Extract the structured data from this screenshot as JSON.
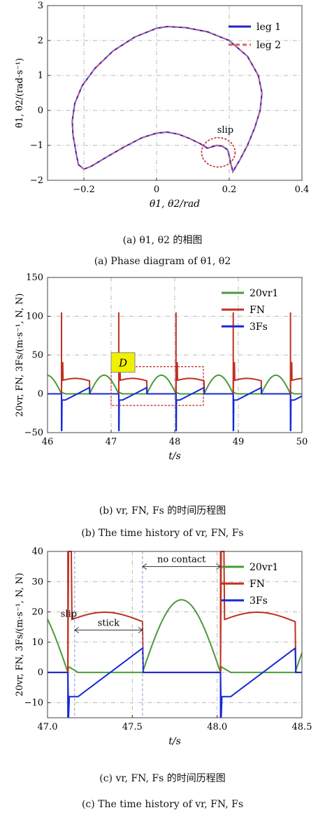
{
  "captions": {
    "a_cn": "(a) θ1, θ2 的相图",
    "a_en": "(a) Phase diagram of θ1, θ2",
    "b_cn": "(b) vr, FN, Fs 的时间历程图",
    "b_en": "(b) The time history of vr, FN, Fs",
    "c_cn": "(c) vr, FN, Fs 的时间历程图",
    "c_en": "(c) The time history of vr, FN, Fs"
  },
  "colors": {
    "leg1": "#2222cc",
    "leg2": "#e06060",
    "vr": "#4a9a3a",
    "FN": "#c03020",
    "Fs": "#1428d8",
    "grid": "#b8b8b8",
    "annot": "#c02020"
  },
  "chart_data": [
    {
      "id": "a",
      "type": "line",
      "title": "",
      "xlabel": "θ1, θ2/rad",
      "ylabel": "θ̇1, θ̇2/(rad·s⁻¹)",
      "xlim": [
        -0.3,
        0.4
      ],
      "ylim": [
        -2,
        3
      ],
      "xticks": [
        -0.2,
        0,
        0.2,
        0.4
      ],
      "xtick_labels": [
        "−0.2",
        "0",
        "0.2",
        "0.4"
      ],
      "yticks": [
        -2,
        -1,
        0,
        1,
        2,
        3
      ],
      "ytick_labels": [
        "−2",
        "−1",
        "0",
        "1",
        "2",
        "3"
      ],
      "grid": true,
      "legend": "top-right",
      "annotation": {
        "text": "slip",
        "x": 0.18,
        "y": -1.2
      },
      "series": [
        {
          "name": "leg 1",
          "style": "solid",
          "points": [
            [
              -0.2,
              -1.68
            ],
            [
              -0.215,
              -1.55
            ],
            [
              -0.22,
              -1.3
            ],
            [
              -0.225,
              -1.0
            ],
            [
              -0.23,
              -0.7
            ],
            [
              -0.232,
              -0.3
            ],
            [
              -0.225,
              0.2
            ],
            [
              -0.205,
              0.7
            ],
            [
              -0.17,
              1.2
            ],
            [
              -0.12,
              1.7
            ],
            [
              -0.06,
              2.1
            ],
            [
              0.0,
              2.35
            ],
            [
              0.03,
              2.4
            ],
            [
              0.08,
              2.37
            ],
            [
              0.14,
              2.25
            ],
            [
              0.2,
              2.0
            ],
            [
              0.25,
              1.55
            ],
            [
              0.28,
              1.0
            ],
            [
              0.29,
              0.5
            ],
            [
              0.285,
              0.0
            ],
            [
              0.27,
              -0.5
            ],
            [
              0.25,
              -1.0
            ],
            [
              0.23,
              -1.4
            ],
            [
              0.21,
              -1.75
            ],
            [
              0.205,
              -1.55
            ],
            [
              0.2,
              -1.3
            ],
            [
              0.195,
              -1.12
            ],
            [
              0.18,
              -1.02
            ],
            [
              0.165,
              -1.0
            ],
            [
              0.15,
              -1.05
            ],
            [
              0.14,
              -1.08
            ],
            [
              0.12,
              -0.95
            ],
            [
              0.09,
              -0.8
            ],
            [
              0.06,
              -0.68
            ],
            [
              0.03,
              -0.62
            ],
            [
              0.0,
              -0.65
            ],
            [
              -0.04,
              -0.78
            ],
            [
              -0.09,
              -1.05
            ],
            [
              -0.14,
              -1.35
            ],
            [
              -0.18,
              -1.6
            ],
            [
              -0.2,
              -1.68
            ]
          ]
        },
        {
          "name": "leg 2",
          "style": "dashed",
          "points": [
            [
              -0.2,
              -1.68
            ],
            [
              -0.215,
              -1.55
            ],
            [
              -0.22,
              -1.3
            ],
            [
              -0.225,
              -1.0
            ],
            [
              -0.23,
              -0.7
            ],
            [
              -0.232,
              -0.3
            ],
            [
              -0.225,
              0.2
            ],
            [
              -0.205,
              0.7
            ],
            [
              -0.17,
              1.2
            ],
            [
              -0.12,
              1.7
            ],
            [
              -0.06,
              2.1
            ],
            [
              0.0,
              2.35
            ],
            [
              0.03,
              2.4
            ],
            [
              0.08,
              2.37
            ],
            [
              0.14,
              2.25
            ],
            [
              0.2,
              2.0
            ],
            [
              0.25,
              1.55
            ],
            [
              0.28,
              1.0
            ],
            [
              0.29,
              0.5
            ],
            [
              0.285,
              0.0
            ],
            [
              0.27,
              -0.5
            ],
            [
              0.25,
              -1.0
            ],
            [
              0.23,
              -1.4
            ],
            [
              0.21,
              -1.75
            ],
            [
              0.205,
              -1.55
            ],
            [
              0.2,
              -1.3
            ],
            [
              0.195,
              -1.12
            ],
            [
              0.18,
              -1.02
            ],
            [
              0.165,
              -1.0
            ],
            [
              0.15,
              -1.05
            ],
            [
              0.14,
              -1.08
            ],
            [
              0.12,
              -0.95
            ],
            [
              0.09,
              -0.8
            ],
            [
              0.06,
              -0.68
            ],
            [
              0.03,
              -0.62
            ],
            [
              0.0,
              -0.65
            ],
            [
              -0.04,
              -0.78
            ],
            [
              -0.09,
              -1.05
            ],
            [
              -0.14,
              -1.35
            ],
            [
              -0.18,
              -1.6
            ],
            [
              -0.2,
              -1.68
            ]
          ]
        }
      ]
    },
    {
      "id": "b",
      "type": "line",
      "title": "",
      "xlabel": "t/s",
      "ylabel": "20vr, FN, 3Fs/(m·s⁻¹, N, N)",
      "xlim": [
        46,
        50
      ],
      "ylim": [
        -50,
        150
      ],
      "xticks": [
        46,
        47,
        48,
        49,
        50
      ],
      "xtick_labels": [
        "46",
        "47",
        "48",
        "49",
        "50"
      ],
      "yticks": [
        -50,
        0,
        50,
        100,
        150
      ],
      "ytick_labels": [
        "−50",
        "0",
        "50",
        "100",
        "150"
      ],
      "grid": true,
      "legend": "top-right",
      "annotation": {
        "text": "D",
        "x0": 47.0,
        "x1": 48.45,
        "y0": -15,
        "y1": 35
      },
      "period": 0.9,
      "contacts": [
        46.22,
        47.12,
        48.02,
        48.92,
        49.82
      ],
      "series": [
        {
          "name": "20vr1",
          "kind": "vr"
        },
        {
          "name": "FN",
          "kind": "FN"
        },
        {
          "name": "3Fs",
          "kind": "Fs"
        }
      ]
    },
    {
      "id": "c",
      "type": "line",
      "title": "",
      "xlabel": "t/s",
      "ylabel": "20vr, FN, 3Fs/(m·s⁻¹, N, N)",
      "xlim": [
        47.0,
        48.5
      ],
      "ylim": [
        -15,
        40
      ],
      "xticks": [
        47.0,
        47.5,
        48.0,
        48.5
      ],
      "xtick_labels": [
        "47.0",
        "47.5",
        "48.0",
        "48.5"
      ],
      "yticks": [
        -10,
        0,
        10,
        20,
        30,
        40
      ],
      "ytick_labels": [
        "−10",
        "0",
        "10",
        "20",
        "30",
        "40"
      ],
      "grid": true,
      "legend": "top-right",
      "annotations": [
        {
          "text": "slip",
          "x": 47.15,
          "y": 17
        },
        {
          "text": "stick",
          "x0": 47.16,
          "x1": 47.56,
          "y": 14
        },
        {
          "text": "no contact",
          "x0": 47.56,
          "x1": 48.02,
          "y": 35
        }
      ],
      "period": 0.9,
      "contacts": [
        47.12,
        48.02
      ],
      "series": [
        {
          "name": "20vr1",
          "kind": "vr"
        },
        {
          "name": "FN",
          "kind": "FN"
        },
        {
          "name": "3Fs",
          "kind": "Fs"
        }
      ]
    }
  ]
}
